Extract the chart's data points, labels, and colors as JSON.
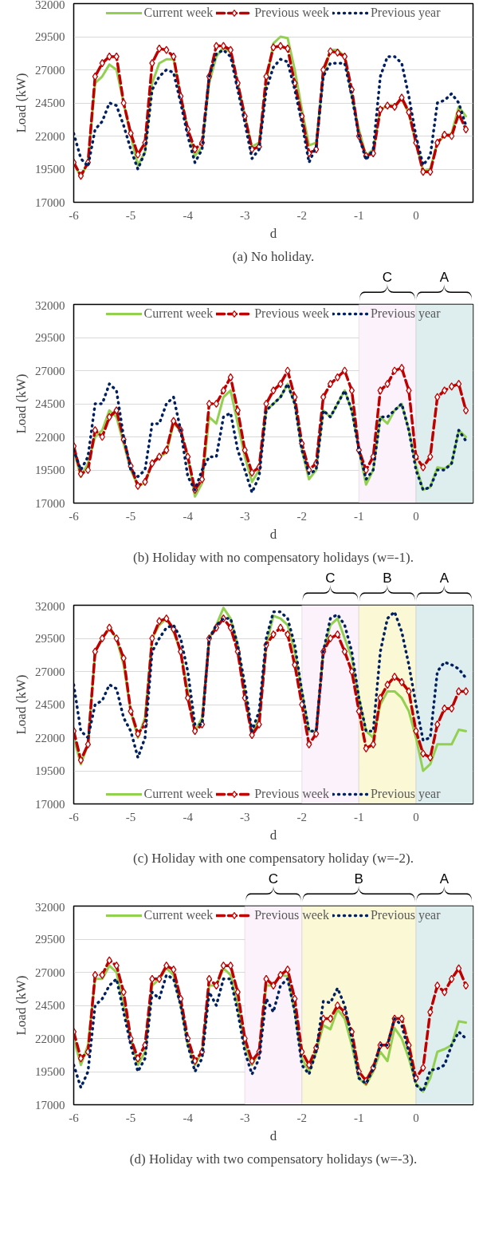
{
  "chart_data": [
    {
      "type": "line",
      "xlabel": "d",
      "ylabel": "Load (kW)",
      "xlim": [
        -6,
        1
      ],
      "ylim": [
        17000,
        32000
      ],
      "xticks": [
        -6,
        -5,
        -4,
        -3,
        -2,
        -1,
        0
      ],
      "yticks": [
        17000,
        19500,
        22000,
        24500,
        27000,
        29500,
        32000
      ],
      "grid": "y",
      "legend": "top",
      "annotations": [
        "(a) No holiday."
      ],
      "x": [
        -6,
        -5.875,
        -5.75,
        -5.625,
        -5.5,
        -5.375,
        -5.25,
        -5.125,
        -5,
        -4.875,
        -4.75,
        -4.625,
        -4.5,
        -4.375,
        -4.25,
        -4.125,
        -4,
        -3.875,
        -3.75,
        -3.625,
        -3.5,
        -3.375,
        -3.25,
        -3.125,
        -3,
        -2.875,
        -2.75,
        -2.625,
        -2.5,
        -2.375,
        -2.25,
        -2.125,
        -2,
        -1.875,
        -1.75,
        -1.625,
        -1.5,
        -1.375,
        -1.25,
        -1.125,
        -1,
        -0.875,
        -0.75,
        -0.625,
        -0.5,
        -0.375,
        -0.25,
        -0.125,
        0,
        0.125,
        0.25,
        0.375,
        0.5,
        0.625,
        0.75,
        0.875
      ],
      "series": [
        {
          "name": "Current week",
          "color": "#92d050",
          "line_style": "solid",
          "marker": "none",
          "values": [
            20000,
            18900,
            20000,
            26000,
            26500,
            27400,
            27000,
            24500,
            22000,
            19800,
            20800,
            26000,
            27500,
            27800,
            27800,
            25000,
            22500,
            20500,
            21200,
            26000,
            28000,
            28700,
            28300,
            26000,
            23500,
            21200,
            21500,
            26000,
            29000,
            29500,
            29400,
            27000,
            24000,
            21300,
            21500,
            26500,
            28500,
            28500,
            28000,
            25000,
            22500,
            20500,
            21000,
            24000,
            24300,
            24300,
            24800,
            23700,
            21500,
            19400,
            19500,
            21500,
            22000,
            22200,
            24200,
            23500
          ]
        },
        {
          "name": "Previous week",
          "color": "#c00000",
          "line_style": "dashed",
          "marker": "diamond",
          "values": [
            20000,
            19000,
            20000,
            26500,
            27500,
            28000,
            28000,
            24500,
            22200,
            20600,
            21500,
            27500,
            28600,
            28500,
            28000,
            25000,
            22500,
            21000,
            21500,
            26500,
            28800,
            28800,
            28500,
            26000,
            23500,
            21000,
            21200,
            26500,
            28700,
            28800,
            28600,
            26000,
            23500,
            20700,
            21000,
            27000,
            28400,
            28300,
            28000,
            25500,
            22000,
            20500,
            20700,
            24000,
            24300,
            24200,
            24900,
            23800,
            21500,
            19300,
            19300,
            21500,
            22100,
            22000,
            23700,
            22500
          ]
        },
        {
          "name": "Previous year",
          "color": "#002060",
          "line_style": "dotted",
          "marker": "none",
          "values": [
            22200,
            20300,
            19700,
            22500,
            23100,
            24500,
            24300,
            22800,
            21000,
            19500,
            20800,
            25500,
            26500,
            27000,
            26800,
            24500,
            22000,
            20000,
            21000,
            26500,
            28200,
            28500,
            28000,
            25500,
            23000,
            20300,
            21000,
            25500,
            27200,
            27800,
            27600,
            25500,
            23000,
            20000,
            21200,
            26500,
            27500,
            27500,
            27500,
            25000,
            22000,
            20200,
            21000,
            26500,
            28000,
            28000,
            27500,
            25000,
            22000,
            19800,
            20500,
            24500,
            24700,
            25200,
            24500,
            22800
          ]
        }
      ]
    },
    {
      "type": "line",
      "xlabel": "d",
      "ylabel": "Load (kW)",
      "xlim": [
        -6,
        1
      ],
      "ylim": [
        17000,
        32000
      ],
      "xticks": [
        -6,
        -5,
        -4,
        -3,
        -2,
        -1,
        0
      ],
      "yticks": [
        17000,
        19500,
        22000,
        24500,
        27000,
        29500,
        32000
      ],
      "grid": "y",
      "legend": "top",
      "annotations": [
        "(b) Holiday with no compensatory holidays (w=-1)."
      ],
      "bands": [
        {
          "axis": "x",
          "from": -1,
          "to": 0,
          "label": "C",
          "color": "#fbf2fb"
        },
        {
          "axis": "x",
          "from": 0,
          "to": 1,
          "label": "A",
          "color": "#deeded"
        }
      ],
      "x": [
        -6,
        -5.875,
        -5.75,
        -5.625,
        -5.5,
        -5.375,
        -5.25,
        -5.125,
        -5,
        -4.875,
        -4.75,
        -4.625,
        -4.5,
        -4.375,
        -4.25,
        -4.125,
        -4,
        -3.875,
        -3.75,
        -3.625,
        -3.5,
        -3.375,
        -3.25,
        -3.125,
        -3,
        -2.875,
        -2.75,
        -2.625,
        -2.5,
        -2.375,
        -2.25,
        -2.125,
        -2,
        -1.875,
        -1.75,
        -1.625,
        -1.5,
        -1.375,
        -1.25,
        -1.125,
        -1,
        -0.875,
        -0.75,
        -0.625,
        -0.5,
        -0.375,
        -0.25,
        -0.125,
        0,
        0.125,
        0.25,
        0.375,
        0.5,
        0.625,
        0.75,
        0.875
      ],
      "series": [
        {
          "name": "Current week",
          "color": "#92d050",
          "line_style": "solid",
          "marker": "none",
          "values": [
            21000,
            19000,
            20000,
            22000,
            22500,
            24000,
            23500,
            21500,
            19500,
            18300,
            18500,
            20000,
            20500,
            20800,
            23000,
            22500,
            20500,
            17500,
            18500,
            23500,
            23000,
            25000,
            25500,
            23000,
            20500,
            18600,
            19500,
            24000,
            24500,
            25000,
            26000,
            24500,
            21000,
            18800,
            19500,
            24000,
            23500,
            24500,
            25500,
            24000,
            21000,
            18400,
            19500,
            23500,
            23000,
            24000,
            24500,
            22500,
            19800,
            18000,
            18200,
            19700,
            19600,
            20000,
            22500,
            22000
          ]
        },
        {
          "name": "Previous week",
          "color": "#c00000",
          "line_style": "dashed",
          "marker": "diamond",
          "values": [
            21300,
            19200,
            19500,
            22500,
            22000,
            23500,
            24000,
            21800,
            19800,
            18300,
            18600,
            20000,
            20500,
            21000,
            23200,
            22500,
            20500,
            18000,
            18800,
            24500,
            24500,
            25500,
            26500,
            24000,
            21000,
            19300,
            19700,
            24500,
            25500,
            26000,
            27000,
            25000,
            21500,
            19500,
            20000,
            25000,
            26000,
            26500,
            27000,
            25500,
            21000,
            19500,
            20500,
            25500,
            26000,
            27000,
            27200,
            25500,
            20500,
            19700,
            20500,
            25000,
            25500,
            25800,
            26000,
            24000
          ]
        },
        {
          "name": "Previous year",
          "color": "#002060",
          "line_style": "dotted",
          "marker": "none",
          "values": [
            21000,
            19500,
            20500,
            24500,
            24500,
            26000,
            25500,
            22000,
            19500,
            19000,
            19500,
            23000,
            23000,
            24500,
            25000,
            22500,
            19000,
            18000,
            19500,
            20500,
            20500,
            23500,
            23800,
            21000,
            19500,
            17800,
            19000,
            24000,
            24500,
            25000,
            26000,
            24500,
            21000,
            19200,
            19500,
            24000,
            23500,
            24500,
            25500,
            24000,
            21000,
            18800,
            19500,
            23500,
            23500,
            24000,
            24500,
            22500,
            19500,
            18000,
            18200,
            19500,
            19500,
            20000,
            22500,
            21700
          ]
        }
      ]
    },
    {
      "type": "line",
      "xlabel": "d",
      "ylabel": "Load (kW)",
      "xlim": [
        -6,
        1
      ],
      "ylim": [
        17000,
        32000
      ],
      "xticks": [
        -6,
        -5,
        -4,
        -3,
        -2,
        -1,
        0
      ],
      "yticks": [
        17000,
        19500,
        22000,
        24500,
        27000,
        29500,
        32000
      ],
      "grid": "y",
      "legend": "bottom",
      "annotations": [
        "(c) Holiday with one compensatory holiday (w=-2)."
      ],
      "bands": [
        {
          "axis": "x",
          "from": -2,
          "to": -1,
          "label": "C",
          "color": "#fbf2fb"
        },
        {
          "axis": "x",
          "from": -1,
          "to": 0,
          "label": "B",
          "color": "#fbf8d6"
        },
        {
          "axis": "x",
          "from": 0,
          "to": 1,
          "label": "A",
          "color": "#deeded"
        }
      ],
      "x": [
        -6,
        -5.875,
        -5.75,
        -5.625,
        -5.5,
        -5.375,
        -5.25,
        -5.125,
        -5,
        -4.875,
        -4.75,
        -4.625,
        -4.5,
        -4.375,
        -4.25,
        -4.125,
        -4,
        -3.875,
        -3.75,
        -3.625,
        -3.5,
        -3.375,
        -3.25,
        -3.125,
        -3,
        -2.875,
        -2.75,
        -2.625,
        -2.5,
        -2.375,
        -2.25,
        -2.125,
        -2,
        -1.875,
        -1.75,
        -1.625,
        -1.5,
        -1.375,
        -1.25,
        -1.125,
        -1,
        -0.875,
        -0.75,
        -0.625,
        -0.5,
        -0.375,
        -0.25,
        -0.125,
        0,
        0.125,
        0.25,
        0.375,
        0.5,
        0.625,
        0.75,
        0.875
      ],
      "series": [
        {
          "name": "Current week",
          "color": "#92d050",
          "line_style": "solid",
          "marker": "none",
          "values": [
            22000,
            20000,
            21500,
            28500,
            29500,
            30300,
            29500,
            27500,
            24000,
            22000,
            23500,
            29500,
            30500,
            31000,
            30000,
            28500,
            25500,
            22500,
            23500,
            29500,
            30500,
            31800,
            31000,
            29000,
            25500,
            22200,
            23500,
            29000,
            31200,
            31000,
            30500,
            28500,
            25500,
            22500,
            22500,
            28500,
            30500,
            31000,
            29500,
            28000,
            25000,
            22500,
            22000,
            24500,
            25500,
            25500,
            25000,
            24000,
            22000,
            19500,
            20000,
            21500,
            21500,
            21500,
            22600,
            22500
          ]
        },
        {
          "name": "Previous week",
          "color": "#c00000",
          "line_style": "dashed",
          "marker": "diamond",
          "values": [
            22500,
            20300,
            21500,
            28500,
            29500,
            30300,
            29500,
            28000,
            24000,
            22300,
            23000,
            29500,
            30800,
            31000,
            30200,
            28500,
            25000,
            22500,
            23000,
            29500,
            30300,
            31000,
            30300,
            28500,
            25000,
            22200,
            23000,
            29000,
            29800,
            30300,
            29800,
            27500,
            24500,
            21500,
            22300,
            28500,
            29500,
            29800,
            28500,
            27000,
            24000,
            21200,
            21500,
            25000,
            26000,
            26600,
            26200,
            25500,
            22500,
            20800,
            20500,
            23000,
            24200,
            24200,
            25500,
            25500
          ]
        },
        {
          "name": "Previous year",
          "color": "#002060",
          "line_style": "dotted",
          "marker": "none",
          "values": [
            26000,
            22500,
            22000,
            24500,
            24800,
            26000,
            25700,
            23500,
            22500,
            20500,
            22000,
            28500,
            29500,
            30300,
            30500,
            29500,
            27000,
            23000,
            23000,
            29500,
            30500,
            31000,
            31000,
            29000,
            26000,
            22500,
            24000,
            29500,
            31500,
            31500,
            31000,
            29000,
            25500,
            22500,
            22500,
            28500,
            31000,
            31300,
            30500,
            28500,
            25000,
            22500,
            22500,
            28500,
            31000,
            31500,
            30000,
            27500,
            24500,
            21800,
            22000,
            27000,
            27700,
            27500,
            27200,
            26500
          ]
        }
      ]
    },
    {
      "type": "line",
      "xlabel": "d",
      "ylabel": "Load (kW)",
      "xlim": [
        -6,
        1
      ],
      "ylim": [
        17000,
        32000
      ],
      "xticks": [
        -6,
        -5,
        -4,
        -3,
        -2,
        -1,
        0
      ],
      "yticks": [
        17000,
        19500,
        22000,
        24500,
        27000,
        29500,
        32000
      ],
      "grid": "y",
      "legend": "top",
      "annotations": [
        "(d) Holiday with two compensatory holidays (w=-3)."
      ],
      "bands": [
        {
          "axis": "x",
          "from": -3,
          "to": -2,
          "label": "C",
          "color": "#fbf2fb"
        },
        {
          "axis": "x",
          "from": -2,
          "to": 0,
          "label": "B",
          "color": "#fbf8d6"
        },
        {
          "axis": "x",
          "from": 0,
          "to": 1,
          "label": "A",
          "color": "#deeded"
        }
      ],
      "x": [
        -6,
        -5.875,
        -5.75,
        -5.625,
        -5.5,
        -5.375,
        -5.25,
        -5.125,
        -5,
        -4.875,
        -4.75,
        -4.625,
        -4.5,
        -4.375,
        -4.25,
        -4.125,
        -4,
        -3.875,
        -3.75,
        -3.625,
        -3.5,
        -3.375,
        -3.25,
        -3.125,
        -3,
        -2.875,
        -2.75,
        -2.625,
        -2.5,
        -2.375,
        -2.25,
        -2.125,
        -2,
        -1.875,
        -1.75,
        -1.625,
        -1.5,
        -1.375,
        -1.25,
        -1.125,
        -1,
        -0.875,
        -0.75,
        -0.625,
        -0.5,
        -0.375,
        -0.25,
        -0.125,
        0,
        0.125,
        0.25,
        0.375,
        0.5,
        0.625,
        0.75,
        0.875
      ],
      "series": [
        {
          "name": "Current week",
          "color": "#92d050",
          "line_style": "solid",
          "marker": "none",
          "values": [
            22000,
            20000,
            21500,
            26500,
            26500,
            27500,
            27000,
            24500,
            22000,
            20000,
            21000,
            26000,
            26500,
            27300,
            26800,
            24500,
            21500,
            20000,
            21000,
            26000,
            26000,
            27300,
            26800,
            24500,
            21500,
            20000,
            21000,
            26000,
            26000,
            26800,
            26700,
            24000,
            20500,
            19500,
            21000,
            23000,
            22700,
            24200,
            23500,
            21500,
            19000,
            18500,
            19500,
            21000,
            20300,
            22800,
            22000,
            20500,
            18600,
            18000,
            19000,
            21000,
            21200,
            21500,
            23300,
            23200
          ]
        },
        {
          "name": "Previous week",
          "color": "#c00000",
          "line_style": "dashed",
          "marker": "diamond",
          "values": [
            22500,
            20500,
            21000,
            26800,
            26800,
            27900,
            27500,
            25500,
            22000,
            20500,
            21500,
            26500,
            26500,
            27500,
            27200,
            25000,
            22000,
            20300,
            21000,
            26500,
            26000,
            27500,
            27500,
            25500,
            22000,
            20300,
            21000,
            26500,
            26000,
            26800,
            27200,
            25000,
            21000,
            20000,
            21300,
            23500,
            23500,
            24500,
            24000,
            22500,
            19500,
            18800,
            19800,
            21500,
            21500,
            23500,
            23500,
            21500,
            19000,
            19800,
            24000,
            26000,
            25500,
            26500,
            27300,
            26000
          ]
        },
        {
          "name": "Previous year",
          "color": "#002060",
          "line_style": "dotted",
          "marker": "none",
          "values": [
            20000,
            18300,
            19500,
            24500,
            25000,
            26000,
            26500,
            24000,
            21500,
            19500,
            20500,
            25500,
            25000,
            26800,
            26500,
            24500,
            21500,
            19500,
            20500,
            25500,
            24500,
            26500,
            26500,
            24000,
            21000,
            19300,
            20500,
            25000,
            24000,
            26000,
            26500,
            24000,
            20000,
            19300,
            21000,
            24800,
            24700,
            25800,
            24500,
            22000,
            19000,
            18600,
            19700,
            21500,
            21500,
            23500,
            23000,
            21000,
            18500,
            18000,
            19600,
            19700,
            20000,
            21500,
            22500,
            22000
          ]
        }
      ]
    }
  ]
}
